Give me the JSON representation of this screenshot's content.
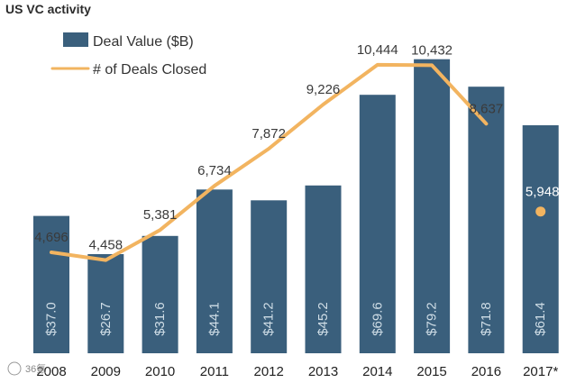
{
  "chart_data": {
    "type": "bar",
    "title": "US VC activity",
    "categories": [
      "2008",
      "2009",
      "2010",
      "2011",
      "2012",
      "2013",
      "2014",
      "2015",
      "2016",
      "2017*"
    ],
    "series": [
      {
        "name": "Deal Value ($B)",
        "type": "bar",
        "color": "#3a5f7c",
        "values": [
          37.0,
          26.7,
          31.6,
          44.1,
          41.2,
          45.2,
          69.6,
          79.2,
          71.8,
          61.4
        ],
        "labels": [
          "$37.0",
          "$26.7",
          "$31.6",
          "$44.1",
          "$41.2",
          "$45.2",
          "$69.6",
          "$79.2",
          "$71.8",
          "$61.4"
        ]
      },
      {
        "name": "# of Deals Closed",
        "type": "line",
        "color": "#f2b460",
        "values": [
          4696,
          4458,
          5381,
          6734,
          7872,
          9226,
          10444,
          10432,
          8637,
          5948
        ],
        "labels": [
          "4,696",
          "4,458",
          "5,381",
          "6,734",
          "7,872",
          "9,226",
          "10,444",
          "10,432",
          "8,637",
          "5,948"
        ],
        "line_points": 9,
        "standalone_last_point": true
      }
    ],
    "legend_position": "top-left",
    "grid": false,
    "xlabel": "",
    "ylabel": ""
  },
  "watermark": "36氪"
}
